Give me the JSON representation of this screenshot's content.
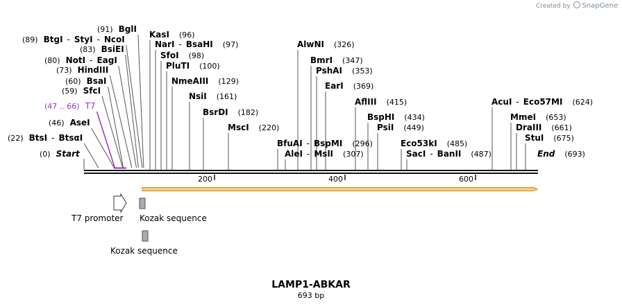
{
  "credit": {
    "prefix": "Created by",
    "brand": "SnapGene"
  },
  "map": {
    "name": "LAMP1-ABKAR",
    "length_label": "693 bp",
    "length": 693,
    "ruler_ticks": [
      "200",
      "400",
      "600"
    ],
    "left_sites": [
      {
        "pos": "(91)",
        "enz": [
          {
            "n": "BglI"
          }
        ]
      },
      {
        "pos": "(89)",
        "enz": [
          {
            "n": "BtgI"
          },
          {
            "n": "StyI"
          },
          {
            "n": "NcoI"
          }
        ]
      },
      {
        "pos": "(83)",
        "enz": [
          {
            "n": "BsiEI"
          }
        ]
      },
      {
        "pos": "(80)",
        "enz": [
          {
            "n": "NotI"
          },
          {
            "n": "EagI"
          }
        ]
      },
      {
        "pos": "(73)",
        "enz": [
          {
            "n": "HindIII"
          }
        ]
      },
      {
        "pos": "(60)",
        "enz": [
          {
            "n": "BsaI"
          }
        ]
      },
      {
        "pos": "(59)",
        "enz": [
          {
            "n": "SfcI"
          }
        ]
      },
      {
        "pos": "(47 .. 66)",
        "enz": [
          {
            "n": "T7"
          }
        ],
        "feature": true
      },
      {
        "pos": "(46)",
        "enz": [
          {
            "n": "AseI"
          }
        ]
      },
      {
        "pos": "(22)",
        "enz": [
          {
            "n": "BtsI"
          },
          {
            "n": "BtsαI"
          }
        ]
      },
      {
        "pos": "(0)",
        "enz": [
          {
            "n": "Start"
          }
        ],
        "italic": true
      }
    ],
    "right_sites": [
      {
        "enz": [
          {
            "n": "KasI"
          }
        ],
        "pos": "(96)"
      },
      {
        "enz": [
          {
            "n": "NarI"
          },
          {
            "n": "BsaHI"
          }
        ],
        "pos": "(97)"
      },
      {
        "enz": [
          {
            "n": "SfoI"
          }
        ],
        "pos": "(98)"
      },
      {
        "enz": [
          {
            "n": "PluTI"
          }
        ],
        "pos": "(100)"
      },
      {
        "enz": [
          {
            "n": "NmeAIII"
          }
        ],
        "pos": "(129)"
      },
      {
        "enz": [
          {
            "n": "NsiI"
          }
        ],
        "pos": "(161)"
      },
      {
        "enz": [
          {
            "n": "BsrDI"
          }
        ],
        "pos": "(182)"
      },
      {
        "enz": [
          {
            "n": "MscI"
          }
        ],
        "pos": "(220)"
      },
      {
        "enz": [
          {
            "n": "AlwNI"
          }
        ],
        "pos": "(326)"
      },
      {
        "enz": [
          {
            "n": "BmrI"
          }
        ],
        "pos": "(347)"
      },
      {
        "enz": [
          {
            "n": "PshAI"
          }
        ],
        "pos": "(353)"
      },
      {
        "enz": [
          {
            "n": "EarI"
          }
        ],
        "pos": "(369)"
      },
      {
        "enz": [
          {
            "n": "AflIII"
          }
        ],
        "pos": "(415)"
      },
      {
        "enz": [
          {
            "n": "BspHI"
          }
        ],
        "pos": "(434)"
      },
      {
        "enz": [
          {
            "n": "PsiI"
          }
        ],
        "pos": "(449)"
      },
      {
        "enz": [
          {
            "n": "BfuAI"
          },
          {
            "n": "BspMI"
          }
        ],
        "pos": "(296)"
      },
      {
        "enz": [
          {
            "n": "AleI"
          },
          {
            "n": "MslI"
          }
        ],
        "pos": "(307)"
      },
      {
        "enz": [
          {
            "n": "Eco53kI"
          }
        ],
        "pos": "(485)"
      },
      {
        "enz": [
          {
            "n": "SacI"
          },
          {
            "n": "BanII"
          }
        ],
        "pos": "(487)"
      },
      {
        "enz": [
          {
            "n": "AcuI"
          },
          {
            "n": "Eco57MI"
          }
        ],
        "pos": "(624)"
      },
      {
        "enz": [
          {
            "n": "MmeI"
          }
        ],
        "pos": "(653)"
      },
      {
        "enz": [
          {
            "n": "DraIII"
          }
        ],
        "pos": "(661)"
      },
      {
        "enz": [
          {
            "n": "StuI"
          }
        ],
        "pos": "(675)"
      },
      {
        "enz": [
          {
            "n": "End"
          }
        ],
        "pos": "(693)",
        "italic": true
      }
    ],
    "features": [
      {
        "label": "T7 promoter"
      },
      {
        "label": "Kozak sequence"
      },
      {
        "label": "Kozak sequence"
      }
    ],
    "colors": {
      "feature_label": "#9b30c8",
      "orf_fill": "#f5cf7a",
      "orf_stroke": "#c98a1a",
      "kozak_fill": "#a8acb4",
      "backbone": "#111111",
      "site_line": "#555555"
    }
  }
}
